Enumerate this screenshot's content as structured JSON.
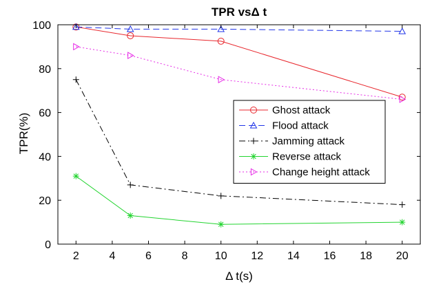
{
  "chart_data": {
    "type": "line",
    "title": "TPR vsΔ t",
    "xlabel": "Δ t(s)",
    "ylabel": "TPR(%)",
    "xlim": [
      1,
      21
    ],
    "ylim": [
      0,
      100
    ],
    "xticks": [
      2,
      4,
      6,
      8,
      10,
      12,
      14,
      16,
      18,
      20
    ],
    "yticks": [
      0,
      20,
      40,
      60,
      80,
      100
    ],
    "grid": false,
    "legend_position": "right",
    "x": [
      2,
      5,
      10,
      20
    ],
    "series": [
      {
        "name": "Ghost attack",
        "values": [
          99,
          95,
          92.5,
          67
        ],
        "color": "#e8262c",
        "line_style": "solid",
        "marker": "circle"
      },
      {
        "name": "Flood attack",
        "values": [
          99,
          98,
          98,
          97
        ],
        "color": "#1f33e8",
        "line_style": "dashed",
        "marker": "triangle-up"
      },
      {
        "name": "Jamming attack",
        "values": [
          75,
          27,
          22,
          18
        ],
        "color": "#000000",
        "line_style": "dashdot",
        "marker": "plus"
      },
      {
        "name": "Reverse attack",
        "values": [
          31,
          13,
          9,
          10
        ],
        "color": "#22d42f",
        "line_style": "solid",
        "marker": "star"
      },
      {
        "name": "Change height attack",
        "values": [
          90,
          86,
          75,
          66
        ],
        "color": "#e629e6",
        "line_style": "dotted",
        "marker": "triangle-right"
      }
    ]
  }
}
